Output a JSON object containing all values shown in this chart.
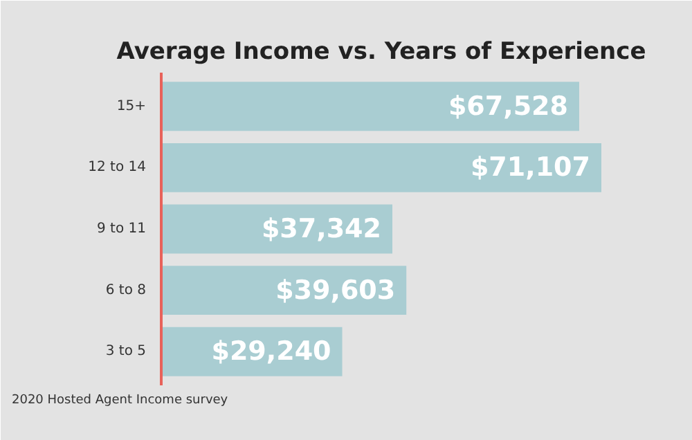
{
  "chart_data": {
    "type": "bar",
    "orientation": "horizontal",
    "title": "Average Income vs. Years of Experience",
    "categories": [
      "15+",
      "12 to 14",
      "9 to 11",
      "6 to 8",
      "3 to 5"
    ],
    "values": [
      67528,
      71107,
      37342,
      39603,
      29240
    ],
    "value_labels": [
      "$67,528",
      "$71,107",
      "$37,342",
      "$39,603",
      "$29,240"
    ],
    "color": "#a9cdd2",
    "annotations": [
      "2020 Hosted Agent Income survey"
    ]
  }
}
